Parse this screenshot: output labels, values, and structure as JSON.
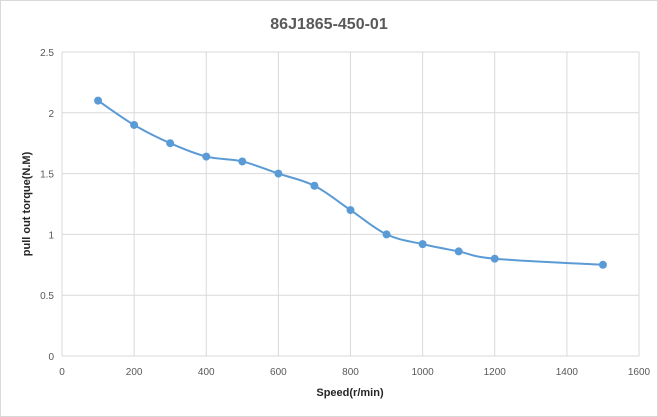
{
  "chart_data": {
    "type": "line",
    "title": "86J1865-450-01",
    "xlabel": "Speed(r/min)",
    "ylabel": "pull out torque(N.M)",
    "xlim": [
      0,
      1600
    ],
    "ylim": [
      0,
      2.5
    ],
    "x_ticks": [
      "0",
      "200",
      "400",
      "600",
      "800",
      "1000",
      "1200",
      "1400",
      "1600"
    ],
    "y_ticks": [
      "0",
      "0.5",
      "1",
      "1.5",
      "2",
      "2.5"
    ],
    "grid": true,
    "smooth": true,
    "color": "#5b9bd5",
    "series": [
      {
        "x": [
          100,
          200,
          300,
          400,
          500,
          600,
          700,
          800,
          900,
          1000,
          1100,
          1200,
          1500
        ],
        "values": [
          2.1,
          1.9,
          1.75,
          1.64,
          1.6,
          1.5,
          1.4,
          1.2,
          1.0,
          0.92,
          0.86,
          0.8,
          0.75
        ]
      }
    ]
  }
}
